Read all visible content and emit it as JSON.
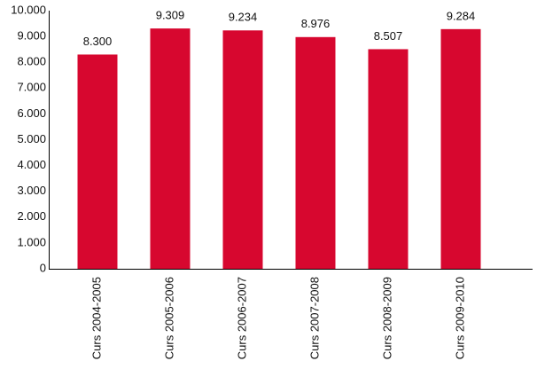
{
  "chart_data": {
    "type": "bar",
    "categories": [
      "Curs 2004-2005",
      "Curs 2005-2006",
      "Curs 2006-2007",
      "Curs 2007-2008",
      "Curs 2008-2009",
      "Curs 2009-2010"
    ],
    "values": [
      8300,
      9309,
      9234,
      8976,
      8507,
      9284
    ],
    "value_labels": [
      "8.300",
      "9.309",
      "9.234",
      "8.976",
      "8.507",
      "9.284"
    ],
    "color": "#d7072f",
    "ylim": [
      0,
      10000
    ],
    "yticks": [
      0,
      {
        "value": 1000,
        "label": "1.000"
      },
      {
        "value": 2000,
        "label": "2.000"
      },
      {
        "value": 3000,
        "label": "3.000"
      },
      {
        "value": 4000,
        "label": "4.000"
      },
      {
        "value": 5000,
        "label": "5.000"
      },
      {
        "value": 6000,
        "label": "6.000"
      },
      {
        "value": 7000,
        "label": "7.000"
      },
      {
        "value": 8000,
        "label": "8.000"
      },
      {
        "value": 9000,
        "label": "9.000"
      },
      {
        "value": 10000,
        "label": "10.000"
      }
    ],
    "grid": false
  }
}
